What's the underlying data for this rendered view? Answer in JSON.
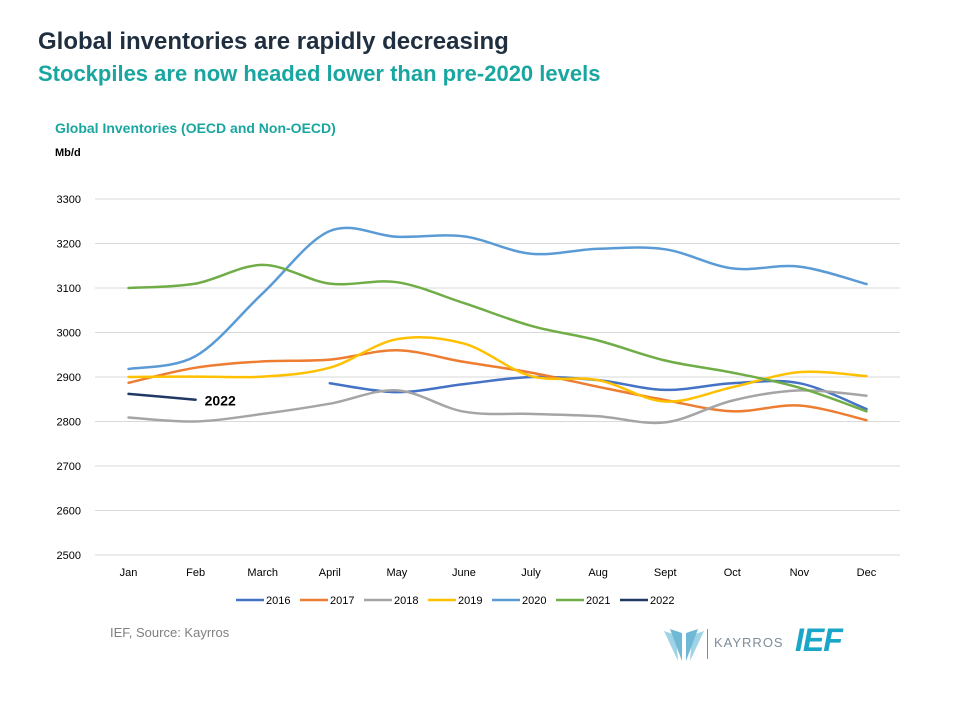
{
  "header": {
    "title": "Global inventories are rapidly decreasing",
    "subtitle": "Stockpiles are now headed lower than pre-2020 levels"
  },
  "footer": {
    "source": "IEF, Source: Kayrros",
    "kayrros_logo_text": "KAYRROS",
    "ief_logo_text": "IEF"
  },
  "chart_data": {
    "type": "line",
    "title": "Global Inventories (OECD and Non-OECD)",
    "ylabel": "Mb/d",
    "xlabel": "",
    "categories": [
      "Jan",
      "Feb",
      "March",
      "April",
      "May",
      "June",
      "July",
      "Aug",
      "Sept",
      "Oct",
      "Nov",
      "Dec"
    ],
    "ylim": [
      2500,
      3300
    ],
    "yticks": [
      2500,
      2600,
      2700,
      2800,
      2900,
      3000,
      3100,
      3200,
      3300
    ],
    "grid": true,
    "legend_position": "bottom",
    "annotation": "2022",
    "series": [
      {
        "name": "2016",
        "color": "#4472c4",
        "values": [
          null,
          null,
          null,
          2886,
          2866,
          2884,
          2900,
          2893,
          2871,
          2886,
          2886,
          2828
        ]
      },
      {
        "name": "2017",
        "color": "#ed7d31",
        "values": [
          2887,
          2921,
          2935,
          2939,
          2960,
          2934,
          2910,
          2878,
          2848,
          2823,
          2836,
          2803
        ]
      },
      {
        "name": "2018",
        "color": "#a5a5a5",
        "values": [
          2809,
          2800,
          2817,
          2840,
          2870,
          2822,
          2817,
          2812,
          2798,
          2847,
          2870,
          2858
        ]
      },
      {
        "name": "2019",
        "color": "#ffc000",
        "values": [
          2900,
          2901,
          2901,
          2921,
          2985,
          2975,
          2902,
          2893,
          2845,
          2877,
          2911,
          2902
        ]
      },
      {
        "name": "2020",
        "color": "#5b9bd5",
        "values": [
          2918,
          2947,
          3088,
          3228,
          3215,
          3216,
          3177,
          3188,
          3187,
          3144,
          3148,
          3109
        ]
      },
      {
        "name": "2021",
        "color": "#70ad47",
        "values": [
          3100,
          3110,
          3152,
          3110,
          3113,
          3066,
          3015,
          2982,
          2937,
          2910,
          2876,
          2823
        ]
      },
      {
        "name": "2022",
        "color": "#203864",
        "values": [
          2862,
          2849,
          null,
          null,
          null,
          null,
          null,
          null,
          null,
          null,
          null,
          null
        ]
      }
    ]
  }
}
